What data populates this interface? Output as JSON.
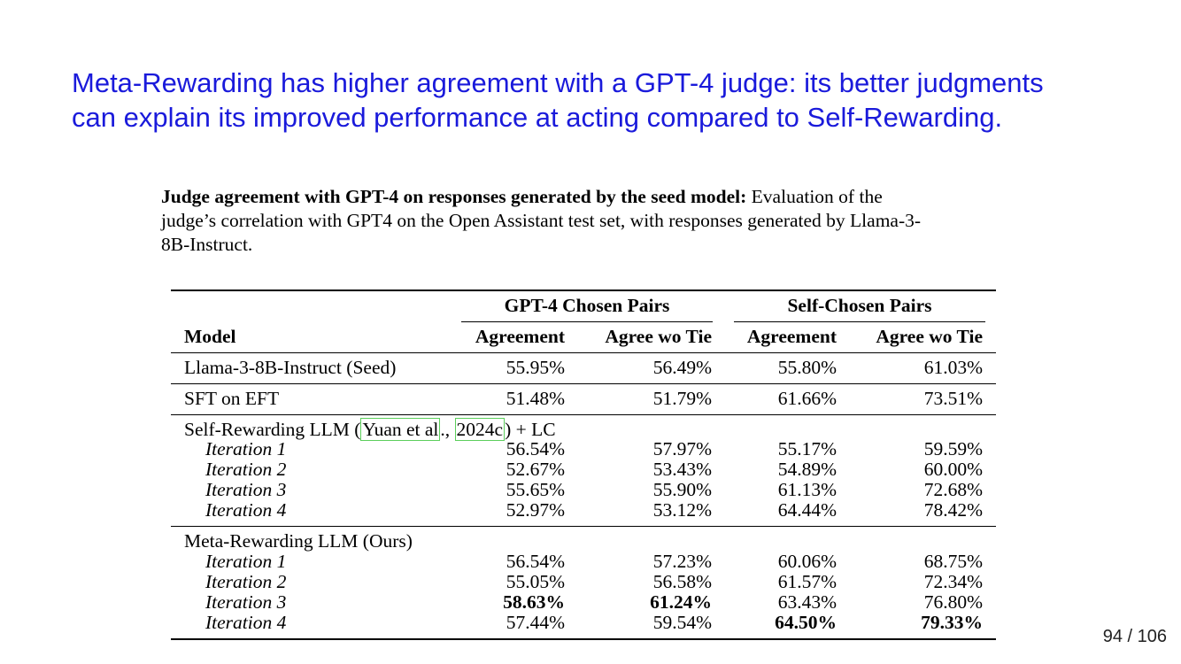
{
  "slide": {
    "title_line1": "Meta-Rewarding has higher agreement with a GPT-4 judge: its better judgments",
    "title_line2": "can explain its improved performance at acting compared to Self-Rewarding.",
    "page_number": "94 / 106"
  },
  "caption": {
    "bold": "Judge agreement with GPT-4 on responses generated by the seed model:",
    "line1_rest": " Evaluation of the",
    "line2": "judge’s correlation with GPT4 on the Open Assistant test set, with responses generated by Llama-3-",
    "line3": "8B-Instruct."
  },
  "table": {
    "group_headers": [
      "GPT-4 Chosen Pairs",
      "Self-Chosen Pairs"
    ],
    "columns": [
      "Model",
      "Agreement",
      "Agree wo Tie",
      "Agreement",
      "Agree wo Tie"
    ],
    "rows": {
      "seed": {
        "model": "Llama-3-8B-Instruct (Seed)",
        "values": [
          "55.95%",
          "56.49%",
          "55.80%",
          "61.03%"
        ]
      },
      "sft": {
        "model": "SFT on EFT",
        "values": [
          "51.48%",
          "51.79%",
          "61.66%",
          "73.51%"
        ]
      }
    },
    "self_rewarding": {
      "prefix": "Self-Rewarding LLM (",
      "cite_author": "Yuan et al",
      "sep": ".,",
      "cite_year": "2024c",
      "suffix": ") + LC",
      "iterations": [
        {
          "label": "Iteration 1",
          "values": [
            "56.54%",
            "57.97%",
            "55.17%",
            "59.59%"
          ]
        },
        {
          "label": "Iteration 2",
          "values": [
            "52.67%",
            "53.43%",
            "54.89%",
            "60.00%"
          ]
        },
        {
          "label": "Iteration 3",
          "values": [
            "55.65%",
            "55.90%",
            "61.13%",
            "72.68%"
          ]
        },
        {
          "label": "Iteration 4",
          "values": [
            "52.97%",
            "53.12%",
            "64.44%",
            "78.42%"
          ]
        }
      ]
    },
    "meta_rewarding": {
      "title": "Meta-Rewarding LLM (Ours)",
      "iterations": [
        {
          "label": "Iteration 1",
          "values": [
            "56.54%",
            "57.23%",
            "60.06%",
            "68.75%"
          ]
        },
        {
          "label": "Iteration 2",
          "values": [
            "55.05%",
            "56.58%",
            "61.57%",
            "72.34%"
          ]
        },
        {
          "label": "Iteration 3",
          "values": [
            "58.63%",
            "61.24%",
            "63.43%",
            "76.80%"
          ]
        },
        {
          "label": "Iteration 4",
          "values": [
            "57.44%",
            "59.54%",
            "64.50%",
            "79.33%"
          ]
        }
      ]
    }
  }
}
